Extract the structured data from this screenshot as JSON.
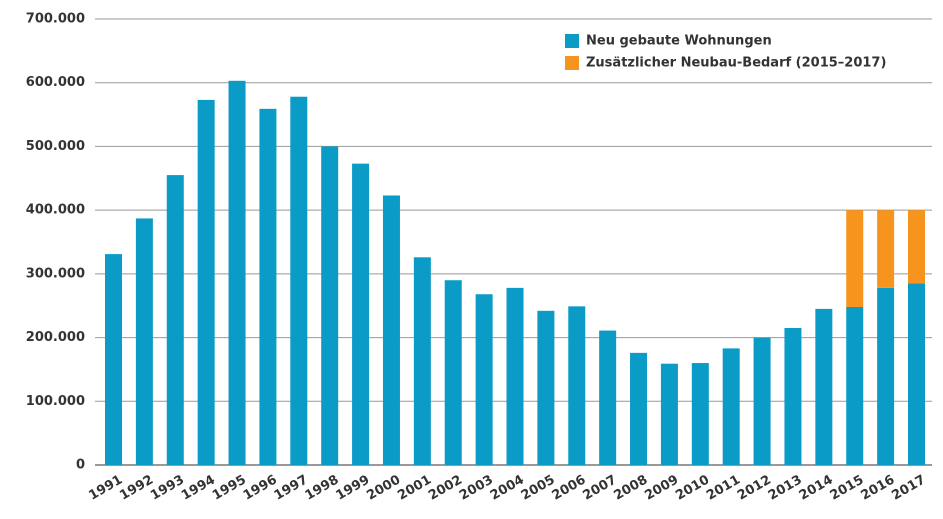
{
  "chart_data": {
    "type": "stacked_bar",
    "categories": [
      "1991",
      "1992",
      "1993",
      "1994",
      "1995",
      "1996",
      "1997",
      "1998",
      "1999",
      "2000",
      "2001",
      "2002",
      "2003",
      "2004",
      "2005",
      "2006",
      "2007",
      "2008",
      "2009",
      "2010",
      "2011",
      "2012",
      "2013",
      "2014",
      "2015",
      "2016",
      "2017"
    ],
    "series": [
      {
        "name": "Neu gebaute Wohnungen",
        "color": "#0a9bc7",
        "values": [
          331000,
          387000,
          455000,
          573000,
          603000,
          559000,
          578000,
          500000,
          473000,
          423000,
          326000,
          290000,
          268000,
          278000,
          242000,
          249000,
          211000,
          176000,
          159000,
          160000,
          183000,
          200000,
          215000,
          245000,
          248000,
          278000,
          285000
        ]
      },
      {
        "name": "Zusätzlicher Neubau-Bedarf (2015–2017)",
        "color": "#f7941d",
        "values": [
          null,
          null,
          null,
          null,
          null,
          null,
          null,
          null,
          null,
          null,
          null,
          null,
          null,
          null,
          null,
          null,
          null,
          null,
          null,
          null,
          null,
          null,
          null,
          null,
          152000,
          122000,
          115000
        ]
      }
    ],
    "ylim": [
      0,
      700000
    ],
    "yticks": [
      0,
      {
        "value": 100000,
        "label": "100.000"
      },
      {
        "value": 200000,
        "label": "200.000"
      },
      {
        "value": 300000,
        "label": "300.000"
      },
      {
        "value": 400000,
        "label": "400.000"
      },
      {
        "value": 500000,
        "label": "500.000"
      },
      {
        "value": 600000,
        "label": "600.000"
      },
      {
        "value": 700000,
        "label": "700.000"
      }
    ],
    "grid": true,
    "legend": "top-right"
  }
}
